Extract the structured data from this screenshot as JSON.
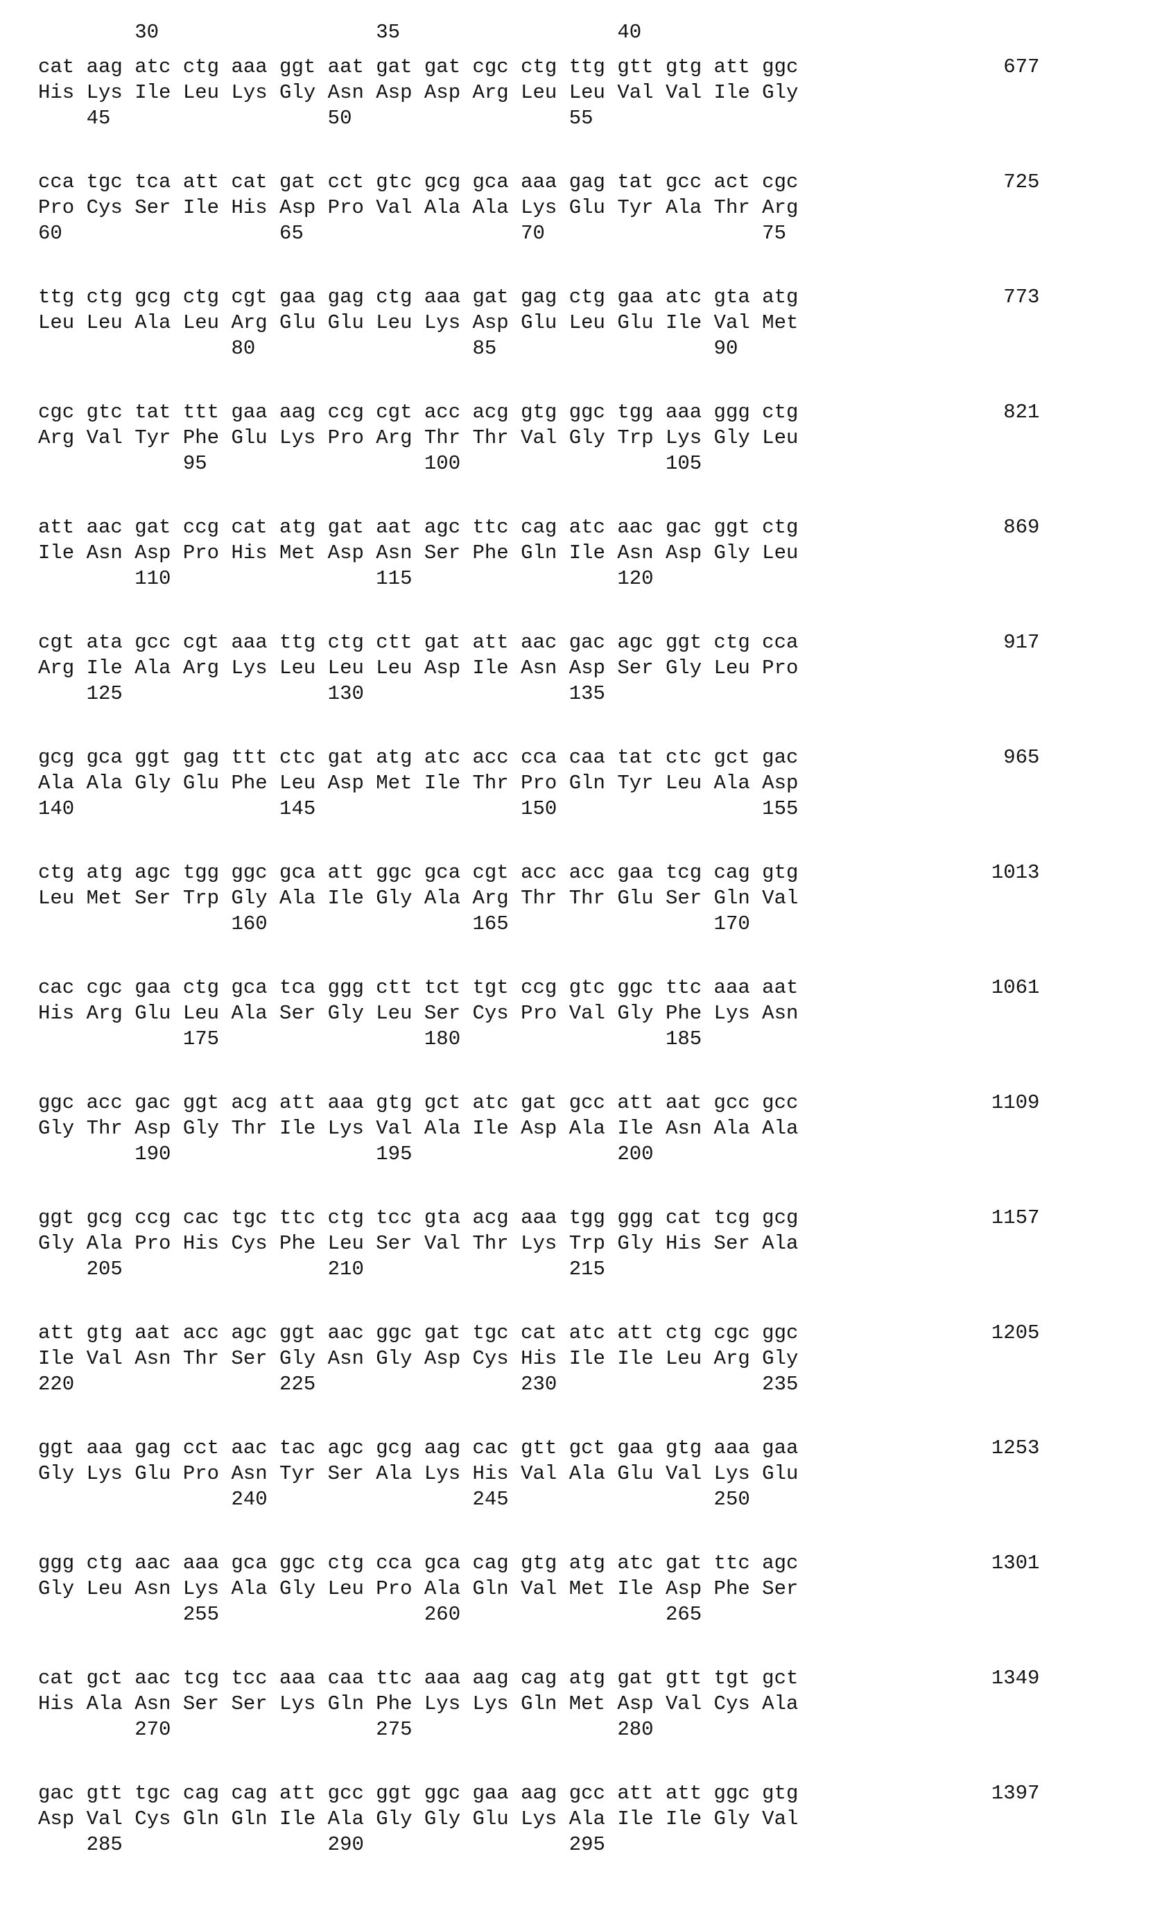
{
  "page": {
    "background": "#ffffff",
    "text_color": "#141414",
    "header_ruler": [
      {
        "label": "30",
        "codon": 3
      },
      {
        "label": "35",
        "codon": 8
      },
      {
        "label": "40",
        "codon": 13
      }
    ],
    "blocks": [
      {
        "dna": "cat aag atc ctg aaa ggt aat gat gat cgc ctg ttg gtt gtg att ggc",
        "aa": "His Lys Ile Leu Lys Gly Asn Asp Asp Arg Leu Leu Val Val Ile Gly",
        "nt_pos": "677",
        "ruler": [
          {
            "label": "45",
            "codon": 2
          },
          {
            "label": "50",
            "codon": 7
          },
          {
            "label": "55",
            "codon": 12
          }
        ]
      },
      {
        "dna": "cca tgc tca att cat gat cct gtc gcg gca aaa gag tat gcc act cgc",
        "aa": "Pro Cys Ser Ile His Asp Pro Val Ala Ala Lys Glu Tyr Ala Thr Arg",
        "nt_pos": "725",
        "ruler": [
          {
            "label": "60",
            "codon": 1
          },
          {
            "label": "65",
            "codon": 6
          },
          {
            "label": "70",
            "codon": 11
          },
          {
            "label": "75",
            "codon": 16
          }
        ]
      },
      {
        "dna": "ttg ctg gcg ctg cgt gaa gag ctg aaa gat gag ctg gaa atc gta atg",
        "aa": "Leu Leu Ala Leu Arg Glu Glu Leu Lys Asp Glu Leu Glu Ile Val Met",
        "nt_pos": "773",
        "ruler": [
          {
            "label": "80",
            "codon": 5
          },
          {
            "label": "85",
            "codon": 10
          },
          {
            "label": "90",
            "codon": 15
          }
        ]
      },
      {
        "dna": "cgc gtc tat ttt gaa aag ccg cgt acc acg gtg ggc tgg aaa ggg ctg",
        "aa": "Arg Val Tyr Phe Glu Lys Pro Arg Thr Thr Val Gly Trp Lys Gly Leu",
        "nt_pos": "821",
        "ruler": [
          {
            "label": "95",
            "codon": 4
          },
          {
            "label": "100",
            "codon": 9
          },
          {
            "label": "105",
            "codon": 14
          }
        ]
      },
      {
        "dna": "att aac gat ccg cat atg gat aat agc ttc cag atc aac gac ggt ctg",
        "aa": "Ile Asn Asp Pro His Met Asp Asn Ser Phe Gln Ile Asn Asp Gly Leu",
        "nt_pos": "869",
        "ruler": [
          {
            "label": "110",
            "codon": 3
          },
          {
            "label": "115",
            "codon": 8
          },
          {
            "label": "120",
            "codon": 13
          }
        ]
      },
      {
        "dna": "cgt ata gcc cgt aaa ttg ctg ctt gat att aac gac agc ggt ctg cca",
        "aa": "Arg Ile Ala Arg Lys Leu Leu Leu Asp Ile Asn Asp Ser Gly Leu Pro",
        "nt_pos": "917",
        "ruler": [
          {
            "label": "125",
            "codon": 2
          },
          {
            "label": "130",
            "codon": 7
          },
          {
            "label": "135",
            "codon": 12
          }
        ]
      },
      {
        "dna": "gcg gca ggt gag ttt ctc gat atg atc acc cca caa tat ctc gct gac",
        "aa": "Ala Ala Gly Glu Phe Leu Asp Met Ile Thr Pro Gln Tyr Leu Ala Asp",
        "nt_pos": "965",
        "ruler": [
          {
            "label": "140",
            "codon": 1
          },
          {
            "label": "145",
            "codon": 6
          },
          {
            "label": "150",
            "codon": 11
          },
          {
            "label": "155",
            "codon": 16
          }
        ]
      },
      {
        "dna": "ctg atg agc tgg ggc gca att ggc gca cgt acc acc gaa tcg cag gtg",
        "aa": "Leu Met Ser Trp Gly Ala Ile Gly Ala Arg Thr Thr Glu Ser Gln Val",
        "nt_pos": "1013",
        "ruler": [
          {
            "label": "160",
            "codon": 5
          },
          {
            "label": "165",
            "codon": 10
          },
          {
            "label": "170",
            "codon": 15
          }
        ]
      },
      {
        "dna": "cac cgc gaa ctg gca tca ggg ctt tct tgt ccg gtc ggc ttc aaa aat",
        "aa": "His Arg Glu Leu Ala Ser Gly Leu Ser Cys Pro Val Gly Phe Lys Asn",
        "nt_pos": "1061",
        "ruler": [
          {
            "label": "175",
            "codon": 4
          },
          {
            "label": "180",
            "codon": 9
          },
          {
            "label": "185",
            "codon": 14
          }
        ]
      },
      {
        "dna": "ggc acc gac ggt acg att aaa gtg gct atc gat gcc att aat gcc gcc",
        "aa": "Gly Thr Asp Gly Thr Ile Lys Val Ala Ile Asp Ala Ile Asn Ala Ala",
        "nt_pos": "1109",
        "ruler": [
          {
            "label": "190",
            "codon": 3
          },
          {
            "label": "195",
            "codon": 8
          },
          {
            "label": "200",
            "codon": 13
          }
        ]
      },
      {
        "dna": "ggt gcg ccg cac tgc ttc ctg tcc gta acg aaa tgg ggg cat tcg gcg",
        "aa": "Gly Ala Pro His Cys Phe Leu Ser Val Thr Lys Trp Gly His Ser Ala",
        "nt_pos": "1157",
        "ruler": [
          {
            "label": "205",
            "codon": 2
          },
          {
            "label": "210",
            "codon": 7
          },
          {
            "label": "215",
            "codon": 12
          }
        ]
      },
      {
        "dna": "att gtg aat acc agc ggt aac ggc gat tgc cat atc att ctg cgc ggc",
        "aa": "Ile Val Asn Thr Ser Gly Asn Gly Asp Cys His Ile Ile Leu Arg Gly",
        "nt_pos": "1205",
        "ruler": [
          {
            "label": "220",
            "codon": 1
          },
          {
            "label": "225",
            "codon": 6
          },
          {
            "label": "230",
            "codon": 11
          },
          {
            "label": "235",
            "codon": 16
          }
        ]
      },
      {
        "dna": "ggt aaa gag cct aac tac agc gcg aag cac gtt gct gaa gtg aaa gaa",
        "aa": "Gly Lys Glu Pro Asn Tyr Ser Ala Lys His Val Ala Glu Val Lys Glu",
        "nt_pos": "1253",
        "ruler": [
          {
            "label": "240",
            "codon": 5
          },
          {
            "label": "245",
            "codon": 10
          },
          {
            "label": "250",
            "codon": 15
          }
        ]
      },
      {
        "dna": "ggg ctg aac aaa gca ggc ctg cca gca cag gtg atg atc gat ttc agc",
        "aa": "Gly Leu Asn Lys Ala Gly Leu Pro Ala Gln Val Met Ile Asp Phe Ser",
        "nt_pos": "1301",
        "ruler": [
          {
            "label": "255",
            "codon": 4
          },
          {
            "label": "260",
            "codon": 9
          },
          {
            "label": "265",
            "codon": 14
          }
        ]
      },
      {
        "dna": "cat gct aac tcg tcc aaa caa ttc aaa aag cag atg gat gtt tgt gct",
        "aa": "His Ala Asn Ser Ser Lys Gln Phe Lys Lys Gln Met Asp Val Cys Ala",
        "nt_pos": "1349",
        "ruler": [
          {
            "label": "270",
            "codon": 3
          },
          {
            "label": "275",
            "codon": 8
          },
          {
            "label": "280",
            "codon": 13
          }
        ]
      },
      {
        "dna": "gac gtt tgc cag cag att gcc ggt ggc gaa aag gcc att att ggc gtg",
        "aa": "Asp Val Cys Gln Gln Ile Ala Gly Gly Glu Lys Ala Ile Ile Gly Val",
        "nt_pos": "1397",
        "ruler": [
          {
            "label": "285",
            "codon": 2
          },
          {
            "label": "290",
            "codon": 7
          },
          {
            "label": "295",
            "codon": 12
          }
        ]
      }
    ]
  }
}
